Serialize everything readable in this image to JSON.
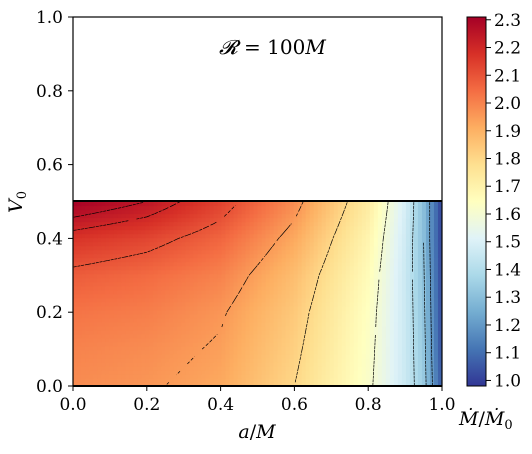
{
  "chart_data": {
    "type": "heatmap",
    "title": "",
    "annotation": {
      "script": "𝓡",
      "rest": " = 100",
      "unit": "M"
    },
    "x_axis": {
      "label_var": "a",
      "label_unit": "M",
      "range": [
        0.0,
        1.0
      ],
      "ticks": [
        "0.0",
        "0.2",
        "0.4",
        "0.6",
        "0.8",
        "1.0"
      ]
    },
    "y_axis": {
      "label_var": "V",
      "label_sub": "0",
      "range": [
        0.0,
        1.0
      ],
      "ticks": [
        "0.0",
        "0.2",
        "0.4",
        "0.6",
        "0.8",
        "1.0"
      ]
    },
    "data_region": {
      "x": [
        0.0,
        1.0
      ],
      "y": [
        0.0,
        0.5
      ]
    },
    "colorbar": {
      "label_num": "Ṁ",
      "label_den": "Ṁ",
      "label_den_sub": "0",
      "range": [
        0.98,
        2.31
      ],
      "ticks": [
        "1.0",
        "1.1",
        "1.2",
        "1.3",
        "1.4",
        "1.5",
        "1.6",
        "1.7",
        "1.8",
        "1.9",
        "2.0",
        "2.1",
        "2.2",
        "2.3"
      ],
      "colormap": [
        "#313695",
        "#4575b4",
        "#74add1",
        "#abd9e9",
        "#e0f3f8",
        "#ffffbf",
        "#fee090",
        "#fdae61",
        "#f46d43",
        "#d73027",
        "#a50026"
      ]
    },
    "field_samples": {
      "a": [
        0.0,
        0.2,
        0.4,
        0.6,
        0.8,
        0.9,
        0.95,
        1.0
      ],
      "V0": [
        0.0,
        0.1,
        0.2,
        0.3,
        0.4,
        0.5
      ],
      "values": [
        [
          1.98,
          1.96,
          1.92,
          1.8,
          1.62,
          1.46,
          1.34,
          1.05
        ],
        [
          2.0,
          1.98,
          1.94,
          1.82,
          1.63,
          1.46,
          1.33,
          1.03
        ],
        [
          2.03,
          2.01,
          1.96,
          1.84,
          1.64,
          1.46,
          1.32,
          1.02
        ],
        [
          2.08,
          2.05,
          2.0,
          1.87,
          1.66,
          1.46,
          1.31,
          1.01
        ],
        [
          2.17,
          2.13,
          2.06,
          1.92,
          1.69,
          1.47,
          1.3,
          1.0
        ],
        [
          2.31,
          2.25,
          2.14,
          1.98,
          1.73,
          1.49,
          1.3,
          1.0
        ]
      ]
    },
    "contour_levels": [
      1.2,
      1.3,
      1.4,
      1.6,
      1.8,
      1.95,
      2.1,
      2.2,
      2.25
    ]
  }
}
